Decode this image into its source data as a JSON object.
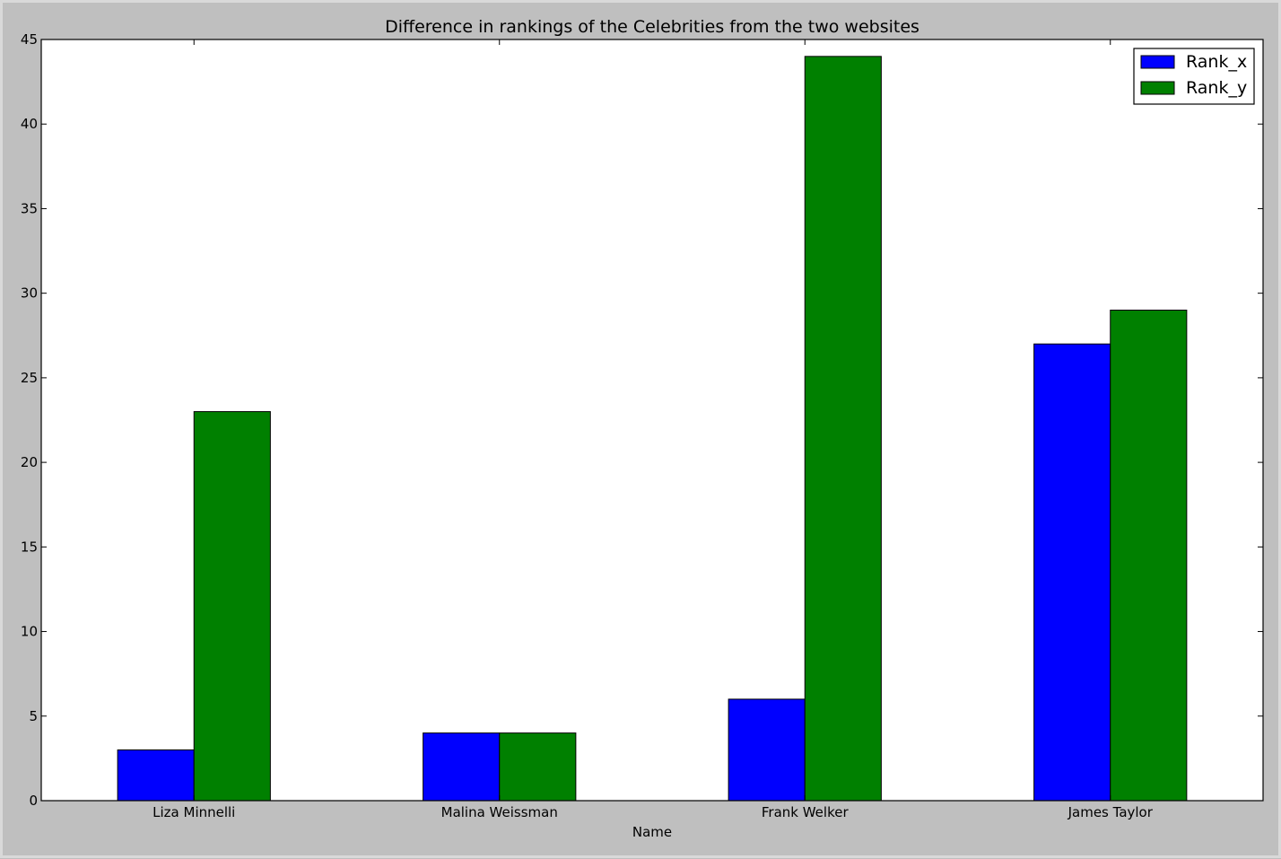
{
  "chart_data": {
    "type": "bar",
    "title": "Difference in rankings of the Celebrities from the two websites",
    "xlabel": "Name",
    "ylabel": "",
    "categories": [
      "Liza Minnelli",
      "Malina Weissman",
      "Frank Welker",
      "James Taylor"
    ],
    "series": [
      {
        "name": "Rank_x",
        "color": "#0000ff",
        "values": [
          3,
          4,
          6,
          27
        ]
      },
      {
        "name": "Rank_y",
        "color": "#008000",
        "values": [
          23,
          4,
          44,
          29
        ]
      }
    ],
    "ylim": [
      0,
      45
    ],
    "yticks": [
      "0",
      "5",
      "10",
      "15",
      "20",
      "25",
      "30",
      "35",
      "40",
      "45"
    ],
    "grid": false,
    "legend_position": "top-right",
    "background_color": "#bfbfbf",
    "plot_background_color": "#ffffff"
  }
}
